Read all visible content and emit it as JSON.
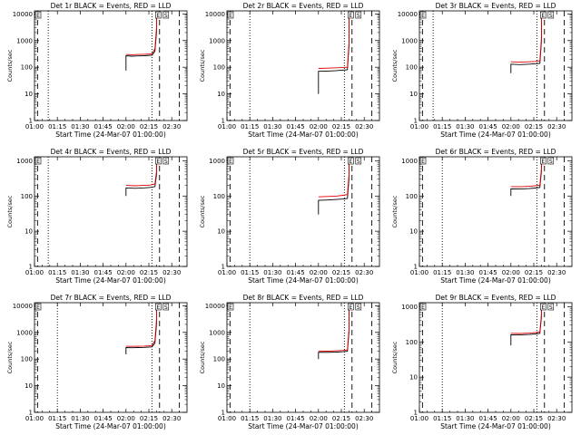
{
  "figure": {
    "xlabel": "Start Time (24-Mar-07 01:00:00)",
    "ylabel": "Counts/sec",
    "x_tick_labels": [
      "01:00",
      "01:15",
      "01:30",
      "01:45",
      "02:00",
      "02:15",
      "02:30"
    ],
    "y_tick_labels": [
      "1",
      "10",
      "100",
      "1000",
      "10000"
    ],
    "series_colors": {
      "events": "#000000",
      "lld": "#e00000"
    },
    "box_markers": [
      "E",
      "S"
    ]
  },
  "chart_data": [
    {
      "type": "line",
      "title": "Det 1r BLACK = Events, RED = LLD",
      "xlabel": "Start Time (24-Mar-07 01:00:00)",
      "ylabel": "Counts/sec",
      "xlim": [
        "01:00",
        "02:40"
      ],
      "ylim": [
        1,
        13000
      ],
      "y_scale": "log",
      "x_ticks": [
        "01:00",
        "01:15",
        "01:30",
        "01:45",
        "02:00",
        "02:15",
        "02:30"
      ],
      "y_ticks": [
        1,
        10,
        100,
        1000,
        10000
      ],
      "dashed_lines": [
        "01:02",
        "02:22",
        "02:35"
      ],
      "dotted_lines": [
        "01:09",
        "02:17"
      ],
      "series": [
        {
          "color": "#000000",
          "points": [
            [
              "02:00",
              75
            ],
            [
              "02:00",
              270
            ],
            [
              "02:04",
              260
            ],
            [
              "02:08",
              265
            ],
            [
              "02:12",
              270
            ],
            [
              "02:17",
              280
            ],
            [
              "02:19",
              400
            ],
            [
              "02:20",
              2000
            ],
            [
              "02:20",
              10500
            ]
          ]
        },
        {
          "color": "#e00000",
          "points": [
            [
              "02:00",
              300
            ],
            [
              "02:04",
              295
            ],
            [
              "02:08",
              300
            ],
            [
              "02:12",
              305
            ],
            [
              "02:17",
              315
            ],
            [
              "02:19",
              500
            ],
            [
              "02:20",
              3000
            ],
            [
              "02:20",
              11500
            ]
          ]
        }
      ]
    },
    {
      "type": "line",
      "title": "Det 2r BLACK = Events, RED = LLD",
      "xlabel": "Start Time (24-Mar-07 01:00:00)",
      "ylabel": "Counts/sec",
      "xlim": [
        "01:00",
        "02:40"
      ],
      "ylim": [
        1,
        13000
      ],
      "y_scale": "log",
      "x_ticks": [
        "01:00",
        "01:15",
        "01:30",
        "01:45",
        "02:00",
        "02:15",
        "02:30"
      ],
      "y_ticks": [
        1,
        10,
        100,
        1000,
        10000
      ],
      "dashed_lines": [
        "01:02",
        "02:22",
        "02:35"
      ],
      "dotted_lines": [
        "01:15",
        "02:17"
      ],
      "series": [
        {
          "color": "#000000",
          "points": [
            [
              "02:00",
              10
            ],
            [
              "02:00",
              70
            ],
            [
              "02:06",
              72
            ],
            [
              "02:12",
              75
            ],
            [
              "02:16",
              78
            ],
            [
              "02:19",
              80
            ],
            [
              "02:20",
              600
            ],
            [
              "02:20",
              10500
            ]
          ]
        },
        {
          "color": "#e00000",
          "points": [
            [
              "02:00",
              90
            ],
            [
              "02:06",
              92
            ],
            [
              "02:12",
              95
            ],
            [
              "02:16",
              98
            ],
            [
              "02:19",
              100
            ],
            [
              "02:20",
              800
            ],
            [
              "02:20",
              11500
            ]
          ]
        }
      ]
    },
    {
      "type": "line",
      "title": "Det 3r BLACK = Events, RED = LLD",
      "xlabel": "Start Time (24-Mar-07 01:00:00)",
      "ylabel": "Counts/sec",
      "xlim": [
        "01:00",
        "02:40"
      ],
      "ylim": [
        1,
        13000
      ],
      "y_scale": "log",
      "x_ticks": [
        "01:00",
        "01:15",
        "01:30",
        "01:45",
        "02:00",
        "02:15",
        "02:30"
      ],
      "y_ticks": [
        1,
        10,
        100,
        1000,
        10000
      ],
      "dashed_lines": [
        "01:02",
        "02:22",
        "02:35"
      ],
      "dotted_lines": [
        "01:09",
        "02:17"
      ],
      "series": [
        {
          "color": "#000000",
          "points": [
            [
              "02:00",
              60
            ],
            [
              "02:00",
              130
            ],
            [
              "02:06",
              125
            ],
            [
              "02:12",
              130
            ],
            [
              "02:16",
              135
            ],
            [
              "02:19",
              140
            ],
            [
              "02:20",
              900
            ],
            [
              "02:20",
              10500
            ]
          ]
        },
        {
          "color": "#e00000",
          "points": [
            [
              "02:00",
              160
            ],
            [
              "02:06",
              155
            ],
            [
              "02:12",
              160
            ],
            [
              "02:16",
              165
            ],
            [
              "02:19",
              175
            ],
            [
              "02:20",
              1200
            ],
            [
              "02:20",
              11500
            ]
          ]
        }
      ]
    },
    {
      "type": "line",
      "title": "Det 4r BLACK = Events, RED = LLD",
      "xlabel": "Start Time (24-Mar-07 01:00:00)",
      "ylabel": "Counts/sec",
      "xlim": [
        "01:00",
        "02:40"
      ],
      "ylim": [
        1,
        1300
      ],
      "y_scale": "log",
      "x_ticks": [
        "01:00",
        "01:15",
        "01:30",
        "01:45",
        "02:00",
        "02:15",
        "02:30"
      ],
      "y_ticks": [
        1,
        10,
        100,
        1000
      ],
      "dashed_lines": [
        "01:02",
        "02:22",
        "02:35"
      ],
      "dotted_lines": [
        "01:09",
        "02:17"
      ],
      "series": [
        {
          "color": "#000000",
          "points": [
            [
              "02:00",
              100
            ],
            [
              "02:00",
              170
            ],
            [
              "02:06",
              165
            ],
            [
              "02:12",
              170
            ],
            [
              "02:16",
              175
            ],
            [
              "02:19",
              185
            ],
            [
              "02:20",
              400
            ],
            [
              "02:20",
              1100
            ]
          ]
        },
        {
          "color": "#e00000",
          "points": [
            [
              "02:00",
              200
            ],
            [
              "02:06",
              195
            ],
            [
              "02:12",
              200
            ],
            [
              "02:16",
              205
            ],
            [
              "02:19",
              220
            ],
            [
              "02:20",
              500
            ],
            [
              "02:20",
              1150
            ]
          ]
        }
      ]
    },
    {
      "type": "line",
      "title": "Det 5r BLACK = Events, RED = LLD",
      "xlabel": "Start Time (24-Mar-07 01:00:00)",
      "ylabel": "Counts/sec",
      "xlim": [
        "01:00",
        "02:40"
      ],
      "ylim": [
        1,
        1300
      ],
      "y_scale": "log",
      "x_ticks": [
        "01:00",
        "01:15",
        "01:30",
        "01:45",
        "02:00",
        "02:15",
        "02:30"
      ],
      "y_ticks": [
        1,
        10,
        100,
        1000
      ],
      "dashed_lines": [
        "01:02",
        "02:22",
        "02:35"
      ],
      "dotted_lines": [
        "01:15",
        "02:17"
      ],
      "series": [
        {
          "color": "#000000",
          "points": [
            [
              "02:00",
              30
            ],
            [
              "02:00",
              75
            ],
            [
              "02:06",
              77
            ],
            [
              "02:12",
              80
            ],
            [
              "02:16",
              82
            ],
            [
              "02:19",
              85
            ],
            [
              "02:20",
              300
            ],
            [
              "02:20",
              1100
            ]
          ]
        },
        {
          "color": "#e00000",
          "points": [
            [
              "02:00",
              95
            ],
            [
              "02:06",
              97
            ],
            [
              "02:12",
              100
            ],
            [
              "02:16",
              105
            ],
            [
              "02:19",
              110
            ],
            [
              "02:20",
              400
            ],
            [
              "02:20",
              1150
            ]
          ]
        }
      ]
    },
    {
      "type": "line",
      "title": "Det 6r BLACK = Events, RED = LLD",
      "xlabel": "Start Time (24-Mar-07 01:00:00)",
      "ylabel": "Counts/sec",
      "xlim": [
        "01:00",
        "02:40"
      ],
      "ylim": [
        1,
        1300
      ],
      "y_scale": "log",
      "x_ticks": [
        "01:00",
        "01:15",
        "01:30",
        "01:45",
        "02:00",
        "02:15",
        "02:30"
      ],
      "y_ticks": [
        1,
        10,
        100,
        1000
      ],
      "dashed_lines": [
        "01:02",
        "02:22",
        "02:35"
      ],
      "dotted_lines": [
        "01:15",
        "02:17"
      ],
      "series": [
        {
          "color": "#000000",
          "points": [
            [
              "02:00",
              100
            ],
            [
              "02:00",
              160
            ],
            [
              "02:06",
              158
            ],
            [
              "02:12",
              162
            ],
            [
              "02:16",
              168
            ],
            [
              "02:19",
              175
            ],
            [
              "02:20",
              500
            ],
            [
              "02:20",
              1100
            ]
          ]
        },
        {
          "color": "#e00000",
          "points": [
            [
              "02:00",
              185
            ],
            [
              "02:06",
              183
            ],
            [
              "02:12",
              188
            ],
            [
              "02:16",
              195
            ],
            [
              "02:19",
              205
            ],
            [
              "02:20",
              600
            ],
            [
              "02:20",
              1150
            ]
          ]
        }
      ]
    },
    {
      "type": "line",
      "title": "Det 7r BLACK = Events, RED = LLD",
      "xlabel": "Start Time (24-Mar-07 01:00:00)",
      "ylabel": "Counts/sec",
      "xlim": [
        "01:00",
        "02:40"
      ],
      "ylim": [
        1,
        13000
      ],
      "y_scale": "log",
      "x_ticks": [
        "01:00",
        "01:15",
        "01:30",
        "01:45",
        "02:00",
        "02:15",
        "02:30"
      ],
      "y_ticks": [
        1,
        10,
        100,
        1000,
        10000
      ],
      "dashed_lines": [
        "01:02",
        "02:22",
        "02:35"
      ],
      "dotted_lines": [
        "01:15",
        "02:17"
      ],
      "series": [
        {
          "color": "#000000",
          "points": [
            [
              "02:00",
              150
            ],
            [
              "02:00",
              270
            ],
            [
              "02:04",
              265
            ],
            [
              "02:08",
              270
            ],
            [
              "02:12",
              275
            ],
            [
              "02:17",
              285
            ],
            [
              "02:19",
              400
            ],
            [
              "02:20",
              2000
            ],
            [
              "02:20",
              10500
            ]
          ]
        },
        {
          "color": "#e00000",
          "points": [
            [
              "02:00",
              300
            ],
            [
              "02:04",
              298
            ],
            [
              "02:08",
              302
            ],
            [
              "02:12",
              306
            ],
            [
              "02:17",
              318
            ],
            [
              "02:19",
              500
            ],
            [
              "02:20",
              3000
            ],
            [
              "02:20",
              11500
            ]
          ]
        }
      ]
    },
    {
      "type": "line",
      "title": "Det 8r BLACK = Events, RED = LLD",
      "xlabel": "Start Time (24-Mar-07 01:00:00)",
      "ylabel": "Counts/sec",
      "xlim": [
        "01:00",
        "02:40"
      ],
      "ylim": [
        1,
        13000
      ],
      "y_scale": "log",
      "x_ticks": [
        "01:00",
        "01:15",
        "01:30",
        "01:45",
        "02:00",
        "02:15",
        "02:30"
      ],
      "y_ticks": [
        1,
        10,
        100,
        1000,
        10000
      ],
      "dashed_lines": [
        "01:02",
        "02:22",
        "02:35"
      ],
      "dotted_lines": [
        "01:15",
        "02:17"
      ],
      "series": [
        {
          "color": "#000000",
          "points": [
            [
              "02:00",
              100
            ],
            [
              "02:00",
              180
            ],
            [
              "02:06",
              178
            ],
            [
              "02:12",
              182
            ],
            [
              "02:16",
              188
            ],
            [
              "02:19",
              195
            ],
            [
              "02:20",
              1000
            ],
            [
              "02:20",
              10500
            ]
          ]
        },
        {
          "color": "#e00000",
          "points": [
            [
              "02:00",
              200
            ],
            [
              "02:06",
              198
            ],
            [
              "02:12",
              203
            ],
            [
              "02:16",
              210
            ],
            [
              "02:19",
              220
            ],
            [
              "02:20",
              1300
            ],
            [
              "02:20",
              11500
            ]
          ]
        }
      ]
    },
    {
      "type": "line",
      "title": "Det 9r BLACK = Events, RED = LLD",
      "xlabel": "Start Time (24-Mar-07 01:00:00)",
      "ylabel": "Counts/sec",
      "xlim": [
        "01:00",
        "02:40"
      ],
      "ylim": [
        1,
        1300
      ],
      "y_scale": "log",
      "x_ticks": [
        "01:00",
        "01:15",
        "01:30",
        "01:45",
        "02:00",
        "02:15",
        "02:30"
      ],
      "y_ticks": [
        1,
        10,
        100,
        1000
      ],
      "dashed_lines": [
        "01:02",
        "02:22",
        "02:35"
      ],
      "dotted_lines": [
        "01:15",
        "02:17"
      ],
      "series": [
        {
          "color": "#000000",
          "points": [
            [
              "02:00",
              80
            ],
            [
              "02:00",
              160
            ],
            [
              "02:06",
              158
            ],
            [
              "02:12",
              162
            ],
            [
              "02:16",
              168
            ],
            [
              "02:19",
              175
            ],
            [
              "02:20",
              500
            ],
            [
              "02:20",
              1100
            ]
          ]
        },
        {
          "color": "#e00000",
          "points": [
            [
              "02:00",
              175
            ],
            [
              "02:06",
              173
            ],
            [
              "02:12",
              178
            ],
            [
              "02:16",
              185
            ],
            [
              "02:19",
              195
            ],
            [
              "02:20",
              600
            ],
            [
              "02:20",
              1150
            ]
          ]
        }
      ]
    }
  ]
}
